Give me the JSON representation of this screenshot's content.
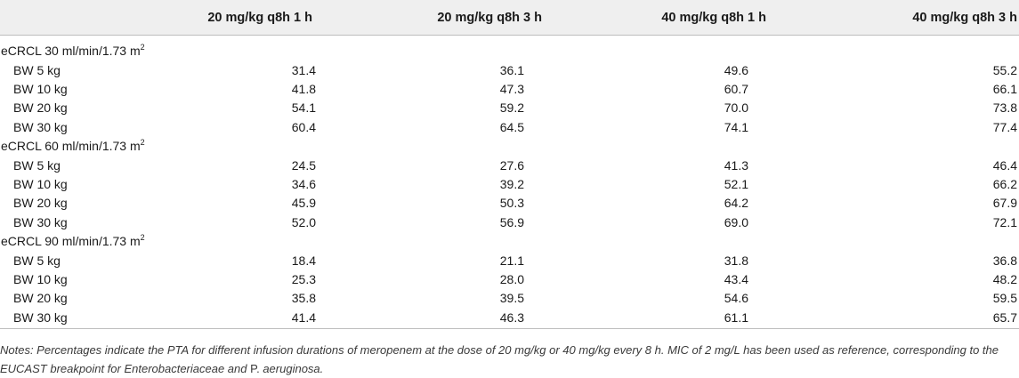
{
  "table": {
    "columns": [
      "",
      "20 mg/kg q8h 1 h",
      "20 mg/kg q8h 3 h",
      "40 mg/kg q8h 1 h",
      "40 mg/kg q8h 3 h"
    ],
    "groups": [
      {
        "label": "eCRCL 30 ml/min/1.73 m",
        "label_sup": "2",
        "rows": [
          {
            "label": "BW 5 kg",
            "values": [
              "31.4",
              "36.1",
              "49.6",
              "55.2"
            ]
          },
          {
            "label": "BW 10 kg",
            "values": [
              "41.8",
              "47.3",
              "60.7",
              "66.1"
            ]
          },
          {
            "label": "BW 20 kg",
            "values": [
              "54.1",
              "59.2",
              "70.0",
              "73.8"
            ]
          },
          {
            "label": "BW 30 kg",
            "values": [
              "60.4",
              "64.5",
              "74.1",
              "77.4"
            ]
          }
        ]
      },
      {
        "label": "eCRCL 60 ml/min/1.73 m",
        "label_sup": "2",
        "rows": [
          {
            "label": "BW 5 kg",
            "values": [
              "24.5",
              "27.6",
              "41.3",
              "46.4"
            ]
          },
          {
            "label": "BW 10 kg",
            "values": [
              "34.6",
              "39.2",
              "52.1",
              "66.2"
            ]
          },
          {
            "label": "BW 20 kg",
            "values": [
              "45.9",
              "50.3",
              "64.2",
              "67.9"
            ]
          },
          {
            "label": "BW 30 kg",
            "values": [
              "52.0",
              "56.9",
              "69.0",
              "72.1"
            ]
          }
        ]
      },
      {
        "label": "eCRCL 90 ml/min/1.73 m",
        "label_sup": "2",
        "rows": [
          {
            "label": "BW 5 kg",
            "values": [
              "18.4",
              "21.1",
              "31.8",
              "36.8"
            ]
          },
          {
            "label": "BW 10 kg",
            "values": [
              "25.3",
              "28.0",
              "43.4",
              "48.2"
            ]
          },
          {
            "label": "BW 20 kg",
            "values": [
              "35.8",
              "39.5",
              "54.6",
              "59.5"
            ]
          },
          {
            "label": "BW 30 kg",
            "values": [
              "41.4",
              "46.3",
              "61.1",
              "65.7"
            ]
          }
        ]
      }
    ]
  },
  "notes": {
    "part1": "Notes: Percentages indicate the PTA for different infusion durations of meropenem at the dose of 20 mg/kg or 40 mg/kg every 8 h. MIC of 2 mg/L has been used as reference, corresponding to the EUCAST breakpoint for Enterobacteriaceae and ",
    "part2": "P.",
    "part3": " aeruginosa."
  }
}
